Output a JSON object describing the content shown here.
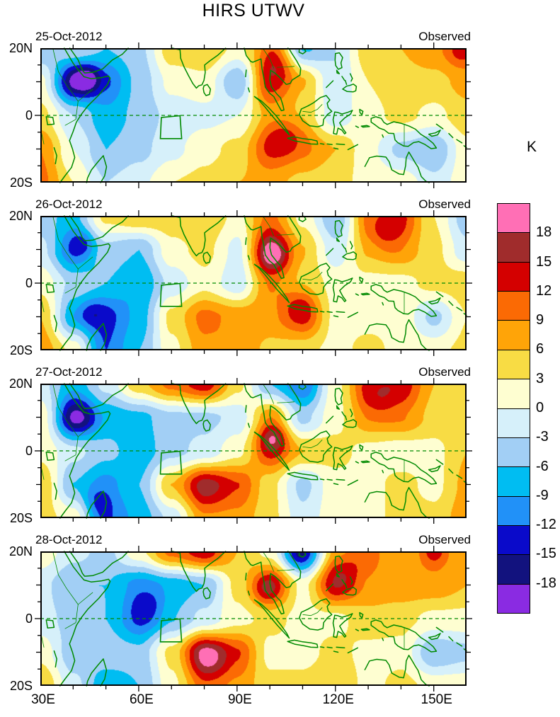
{
  "title": "HIRS UTWV",
  "colorbar": {
    "unit_label": "K",
    "tick_labels": [
      "18",
      "15",
      "12",
      "9",
      "6",
      "3",
      "0",
      "-3",
      "-6",
      "-9",
      "-12",
      "-15",
      "-18"
    ]
  },
  "axes": {
    "x_tick_labels": [
      "30E",
      "60E",
      "90E",
      "120E",
      "150E"
    ],
    "y_tick_labels": [
      "20N",
      "0",
      "20S"
    ]
  },
  "map_colors": {
    "coastline_green": "#008A00",
    "frame_black": "#000000"
  },
  "chart_data": {
    "type": "heatmap",
    "title": "HIRS UTWV",
    "unit": "K",
    "lon_range": [
      30,
      160
    ],
    "lat_range": [
      -20,
      20
    ],
    "levels": [
      -18,
      -15,
      -12,
      -9,
      -6,
      -3,
      0,
      3,
      6,
      9,
      12,
      15,
      18
    ],
    "palette_low_to_high": [
      "#8A2BE2",
      "#12127E",
      "#0A0ACA",
      "#2191F8",
      "#00BDF2",
      "#A2CFF5",
      "#D6F0FA",
      "#FEFED1",
      "#F8DC44",
      "#FFA408",
      "#FB6A04",
      "#D40000",
      "#A02C2C",
      "#FF6FB5"
    ],
    "grid_lons": [
      30,
      40,
      50,
      60,
      70,
      80,
      90,
      100,
      110,
      120,
      130,
      140,
      150,
      160
    ],
    "grid_lats": [
      20,
      10,
      0,
      -10,
      -20
    ],
    "roi_box_lonlat": [
      [
        66.9,
        -0.6
      ],
      [
        72.6,
        -0.1
      ],
      [
        73.1,
        -6.9
      ],
      [
        66.6,
        -6.9
      ]
    ],
    "panels": [
      {
        "date": "25-Oct-2012",
        "annotation": "Observed",
        "values": [
          [
            -6,
            -3,
            -6,
            -4,
            5,
            6,
            2,
            9,
            -7,
            -3,
            5,
            6,
            8,
            10
          ],
          [
            1,
            -17,
            -12,
            -5,
            1,
            2,
            -6,
            13,
            6,
            -3,
            3,
            5,
            5,
            7
          ],
          [
            4,
            -3,
            -8,
            -5,
            -2,
            -1,
            0,
            7,
            5,
            -2,
            2,
            4,
            2,
            5
          ],
          [
            9,
            0,
            -6,
            -4,
            -1,
            2,
            4,
            12,
            9,
            6,
            1,
            -4,
            -6,
            2
          ],
          [
            10,
            3,
            -3,
            -1,
            3,
            4,
            6,
            7,
            5,
            4,
            2,
            2,
            -2,
            2
          ]
        ],
        "hotspots": [
          [
            44,
            11,
            3,
            -8
          ],
          [
            103,
            16,
            4,
            5
          ],
          [
            105,
            -6,
            4,
            5
          ],
          [
            158,
            19,
            3,
            4
          ]
        ]
      },
      {
        "date": "26-Oct-2012",
        "annotation": "Observed",
        "values": [
          [
            -5,
            -7,
            4,
            6,
            5,
            6,
            2,
            10,
            2,
            -6,
            9,
            12,
            3,
            -5
          ],
          [
            -2,
            -12,
            -4,
            -6,
            2,
            4,
            -1,
            16,
            6,
            -2,
            6,
            8,
            4,
            -2
          ],
          [
            2,
            -4,
            -6,
            -9,
            -2,
            2,
            -2,
            9,
            5,
            2,
            2,
            2,
            4,
            5
          ],
          [
            6,
            -8,
            -13,
            -8,
            4,
            10,
            8,
            8,
            12,
            2,
            2,
            2,
            -4,
            3
          ],
          [
            8,
            2,
            -12,
            -6,
            2,
            8,
            9,
            5,
            4,
            2,
            4,
            2,
            2,
            4
          ]
        ],
        "hotspots": [
          [
            101,
            8,
            3.5,
            6
          ],
          [
            135,
            15,
            4,
            5
          ],
          [
            109,
            -6,
            3.5,
            4
          ],
          [
            45,
            -9,
            3,
            -4
          ],
          [
            43,
            12,
            2.5,
            -4
          ]
        ]
      },
      {
        "date": "27-Oct-2012",
        "annotation": "Observed",
        "values": [
          [
            -2,
            -8,
            -2,
            5,
            10,
            14,
            4,
            -6,
            -12,
            2,
            12,
            14,
            6,
            6
          ],
          [
            2,
            -15,
            -8,
            -7,
            -4,
            -4,
            -2,
            8,
            -4,
            2,
            8,
            9,
            5,
            4
          ],
          [
            2,
            -2,
            -5,
            -8,
            -4,
            -2,
            2,
            12,
            6,
            4,
            2,
            1,
            2,
            6
          ],
          [
            6,
            -6,
            -10,
            -6,
            6,
            15,
            12,
            4,
            -4,
            2,
            2,
            4,
            2,
            7
          ],
          [
            4,
            2,
            -12,
            -8,
            -2,
            8,
            8,
            4,
            -2,
            2,
            2,
            4,
            4,
            8
          ]
        ],
        "hotspots": [
          [
            42,
            10,
            3.5,
            -5
          ],
          [
            101,
            4,
            3,
            8
          ],
          [
            133,
            15,
            4,
            4
          ],
          [
            81,
            -12,
            4,
            2
          ],
          [
            47,
            -15,
            3,
            -4
          ]
        ]
      },
      {
        "date": "28-Oct-2012",
        "annotation": "Observed",
        "values": [
          [
            2,
            -2,
            -4,
            2,
            10,
            14,
            6,
            2,
            -13,
            6,
            10,
            6,
            10,
            6
          ],
          [
            -2,
            -6,
            -6,
            -10,
            -8,
            -6,
            4,
            13,
            2,
            14,
            8,
            8,
            8,
            6
          ],
          [
            -2,
            -4,
            -6,
            -12,
            -6,
            -2,
            2,
            4,
            2,
            2,
            5,
            4,
            2,
            2
          ],
          [
            2,
            -5,
            -4,
            -5,
            4,
            17,
            12,
            2,
            2,
            4,
            2,
            2,
            -6,
            -4
          ],
          [
            6,
            -2,
            -8,
            -6,
            2,
            10,
            8,
            4,
            4,
            6,
            2,
            4,
            2,
            2
          ]
        ],
        "hotspots": [
          [
            63,
            4,
            3.5,
            -4
          ],
          [
            82,
            -13,
            4,
            4
          ],
          [
            99,
            9,
            3,
            4
          ],
          [
            123,
            15,
            4,
            4
          ],
          [
            108,
            19,
            3,
            -4
          ],
          [
            150,
            20,
            2.5,
            4
          ]
        ]
      }
    ]
  }
}
